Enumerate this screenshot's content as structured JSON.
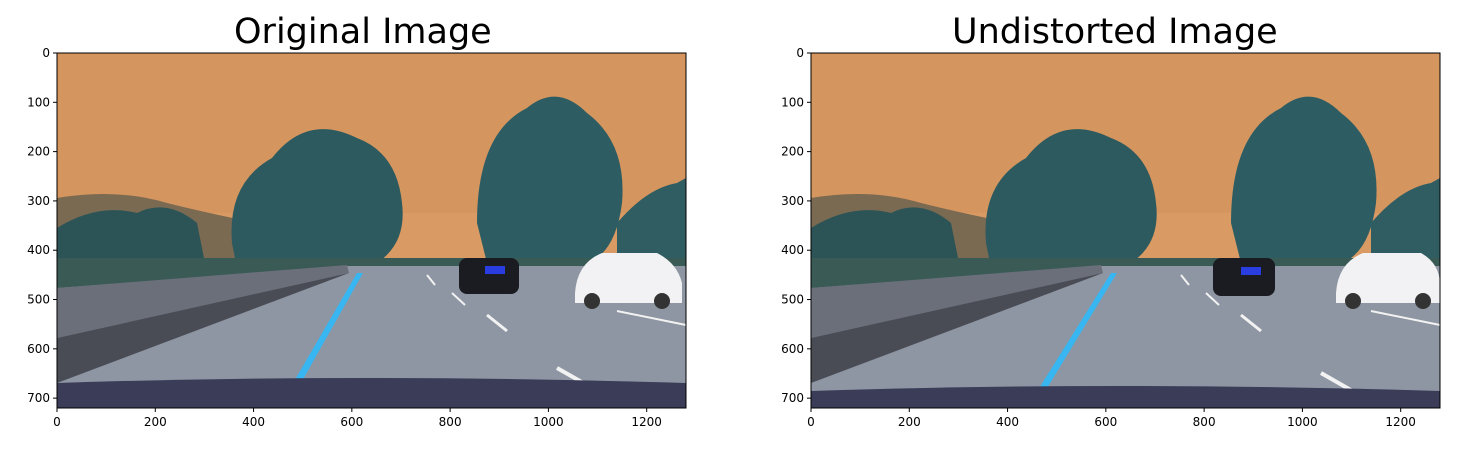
{
  "figures": [
    {
      "title": "Original Image",
      "x_ticks": [
        "0",
        "200",
        "400",
        "600",
        "800",
        "1000",
        "1200"
      ],
      "y_ticks": [
        "0",
        "100",
        "200",
        "300",
        "400",
        "500",
        "600",
        "700"
      ]
    },
    {
      "title": "Undistorted Image",
      "x_ticks": [
        "0",
        "200",
        "400",
        "600",
        "800",
        "1000",
        "1200"
      ],
      "y_ticks": [
        "0",
        "100",
        "200",
        "300",
        "400",
        "500",
        "600",
        "700"
      ]
    }
  ],
  "image_extent": {
    "x": [
      0,
      1280
    ],
    "y": [
      0,
      720
    ]
  },
  "scene": {
    "description_icon": "road-scene-photo",
    "colors": {
      "sky": "#d79a63",
      "road": "#8e97a4",
      "trees": "#2f5e66",
      "lane_line": "#35b5f2"
    }
  }
}
